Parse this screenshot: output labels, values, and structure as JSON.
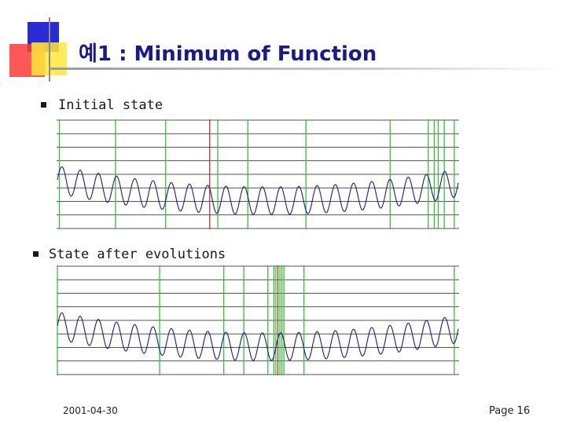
{
  "slide": {
    "title": "예1 : Minimum of Function",
    "footer_date": "2001-04-30",
    "footer_page": "Page 16"
  },
  "colors": {
    "title": "#1a1a8c",
    "curve": "#1a1a8c",
    "individual": "#38c038",
    "best": "#c02020",
    "grid": "#1a1a1a"
  },
  "panels": [
    {
      "label": "Initial state",
      "individuals_x": [
        0.005,
        0.145,
        0.27,
        0.4,
        0.475,
        0.62,
        0.83,
        0.925,
        0.94,
        0.95,
        0.965,
        0.99
      ],
      "best_x": 0.38
    },
    {
      "label": "State after evolutions",
      "individuals_x": [
        0.0,
        0.255,
        0.415,
        0.465,
        0.525,
        0.54,
        0.545,
        0.555,
        0.56,
        0.565,
        0.615,
        0.99
      ],
      "best_x": 0.55
    }
  ]
}
